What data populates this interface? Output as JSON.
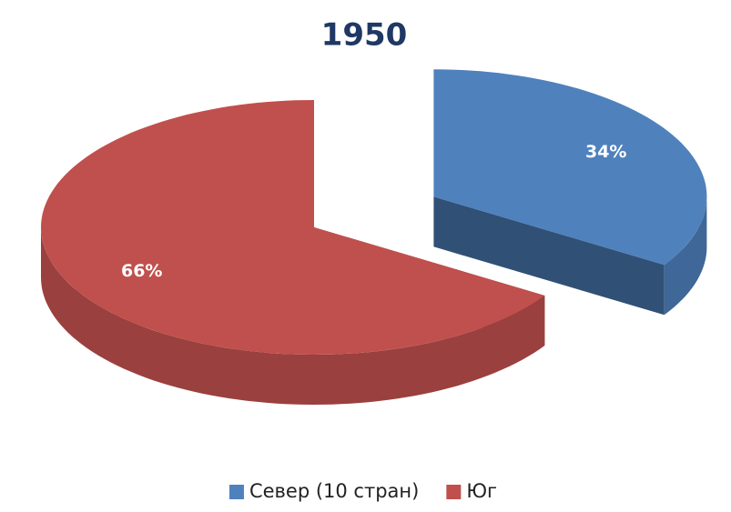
{
  "chart_data": {
    "type": "pie",
    "title": "1950",
    "categories": [
      "Север (10 стран)",
      "Юг"
    ],
    "values": [
      34,
      66
    ],
    "value_labels": [
      "34%",
      "66%"
    ],
    "colors": [
      "#4f81bd",
      "#c0504d"
    ],
    "legend": "bottom"
  }
}
